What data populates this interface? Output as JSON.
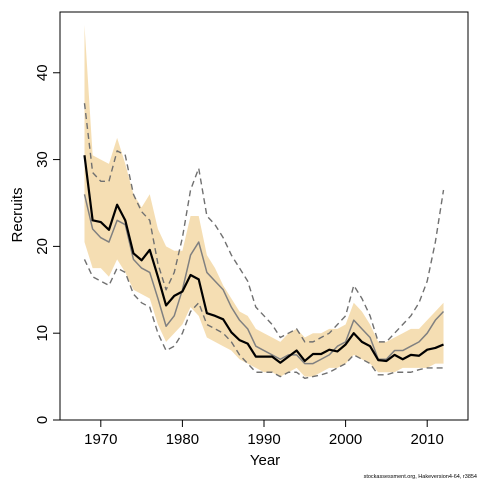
{
  "chart_data": {
    "type": "line",
    "xlabel": "Year",
    "ylabel": "Recruits",
    "xlim": [
      1965,
      2015
    ],
    "ylim": [
      0,
      47
    ],
    "xticks": [
      1970,
      1980,
      1990,
      2000,
      2010
    ],
    "yticks": [
      0,
      10,
      20,
      30,
      40
    ],
    "colors": {
      "band": "#f5deb3",
      "median": "#000000",
      "mean": "#808080",
      "bounds": "#707070"
    },
    "x": [
      1968,
      1969,
      1970,
      1971,
      1972,
      1973,
      1974,
      1975,
      1976,
      1977,
      1978,
      1979,
      1980,
      1981,
      1982,
      1983,
      1984,
      1985,
      1986,
      1987,
      1988,
      1989,
      1990,
      1991,
      1992,
      1993,
      1994,
      1995,
      1996,
      1997,
      1998,
      1999,
      2000,
      2001,
      2002,
      2003,
      2004,
      2005,
      2006,
      2007,
      2008,
      2009,
      2010,
      2011,
      2012
    ],
    "band_upper": [
      45.5,
      30.5,
      30,
      29.5,
      32.5,
      29.5,
      26,
      24.5,
      26,
      22,
      20,
      19.5,
      19.5,
      23.5,
      23.5,
      19,
      17.5,
      15.5,
      14,
      12.5,
      12,
      10.5,
      10,
      9.5,
      9,
      10,
      10.5,
      9.5,
      10,
      10,
      10.5,
      10.5,
      11,
      13.5,
      12.5,
      11,
      9,
      9,
      9.5,
      10,
      10.5,
      10.5,
      11.5,
      12.5,
      13.5
    ],
    "band_lower": [
      20.5,
      17.5,
      17.5,
      16.5,
      18.5,
      17,
      15,
      14.5,
      14,
      11,
      9,
      10,
      11,
      13,
      12,
      9.5,
      9,
      8.5,
      8,
      7,
      6.5,
      6,
      5.5,
      5.5,
      5,
      5.5,
      6,
      5,
      5,
      5.5,
      6,
      6,
      6.5,
      7.5,
      7,
      6.5,
      5.5,
      5.5,
      5.5,
      6,
      6,
      6,
      6,
      6.5,
      6.5
    ],
    "series": [
      {
        "values": [
          30.5,
          23,
          22.8,
          21.9,
          24.8,
          23,
          19.2,
          18.4,
          19.6,
          16.5,
          13.2,
          14.3,
          14.8,
          16.7,
          16.2,
          12.3,
          12,
          11.6,
          10.1,
          9.2,
          8.8,
          7.3,
          7.3,
          7.3,
          6.6,
          7.3,
          8,
          6.8,
          7.6,
          7.6,
          8.1,
          7.9,
          8.7,
          10,
          9,
          8.5,
          6.9,
          6.8,
          7.5,
          7,
          7.5,
          7.4,
          8.1,
          8.3,
          8.7
        ]
      },
      {
        "values": [
          26,
          22,
          21,
          20.5,
          23,
          22.5,
          18.5,
          17.5,
          17,
          14,
          10.8,
          12,
          15,
          19,
          20.5,
          17,
          16,
          15,
          13,
          11.5,
          10.5,
          8.5,
          8,
          7.5,
          7,
          7.5,
          7.5,
          6.5,
          6.5,
          7,
          7.5,
          8.5,
          9,
          11.5,
          10.5,
          9.5,
          7,
          7,
          8,
          8,
          8.5,
          9,
          10,
          11.5,
          12.5
        ]
      },
      {
        "values": [
          36.5,
          28.5,
          27.5,
          27.5,
          31,
          30.5,
          26,
          24,
          23,
          18,
          15,
          17,
          21,
          26.5,
          29,
          23.5,
          22.5,
          21,
          19,
          17.5,
          16,
          13,
          12,
          11,
          9.5,
          10,
          10.5,
          9,
          9,
          9.5,
          10,
          11,
          12,
          15.5,
          14,
          12,
          9,
          9,
          10,
          11,
          12,
          13.5,
          16,
          20.5,
          26.5
        ]
      },
      {
        "values": [
          18.5,
          16.5,
          16,
          15.5,
          17.5,
          17,
          14.5,
          13.5,
          13,
          10,
          8,
          8.5,
          10,
          12.5,
          13.5,
          11,
          10.5,
          10,
          9,
          7.5,
          6.5,
          5.5,
          5.5,
          5.5,
          5,
          5.5,
          5.5,
          4.8,
          5,
          5.2,
          5.5,
          6,
          6.5,
          7.5,
          7,
          6.5,
          5.2,
          5.2,
          5.5,
          5.5,
          5.5,
          5.8,
          6,
          6,
          6
        ]
      }
    ]
  },
  "footnote": "stockassessment.org, Hakeversion4-64, r3854"
}
